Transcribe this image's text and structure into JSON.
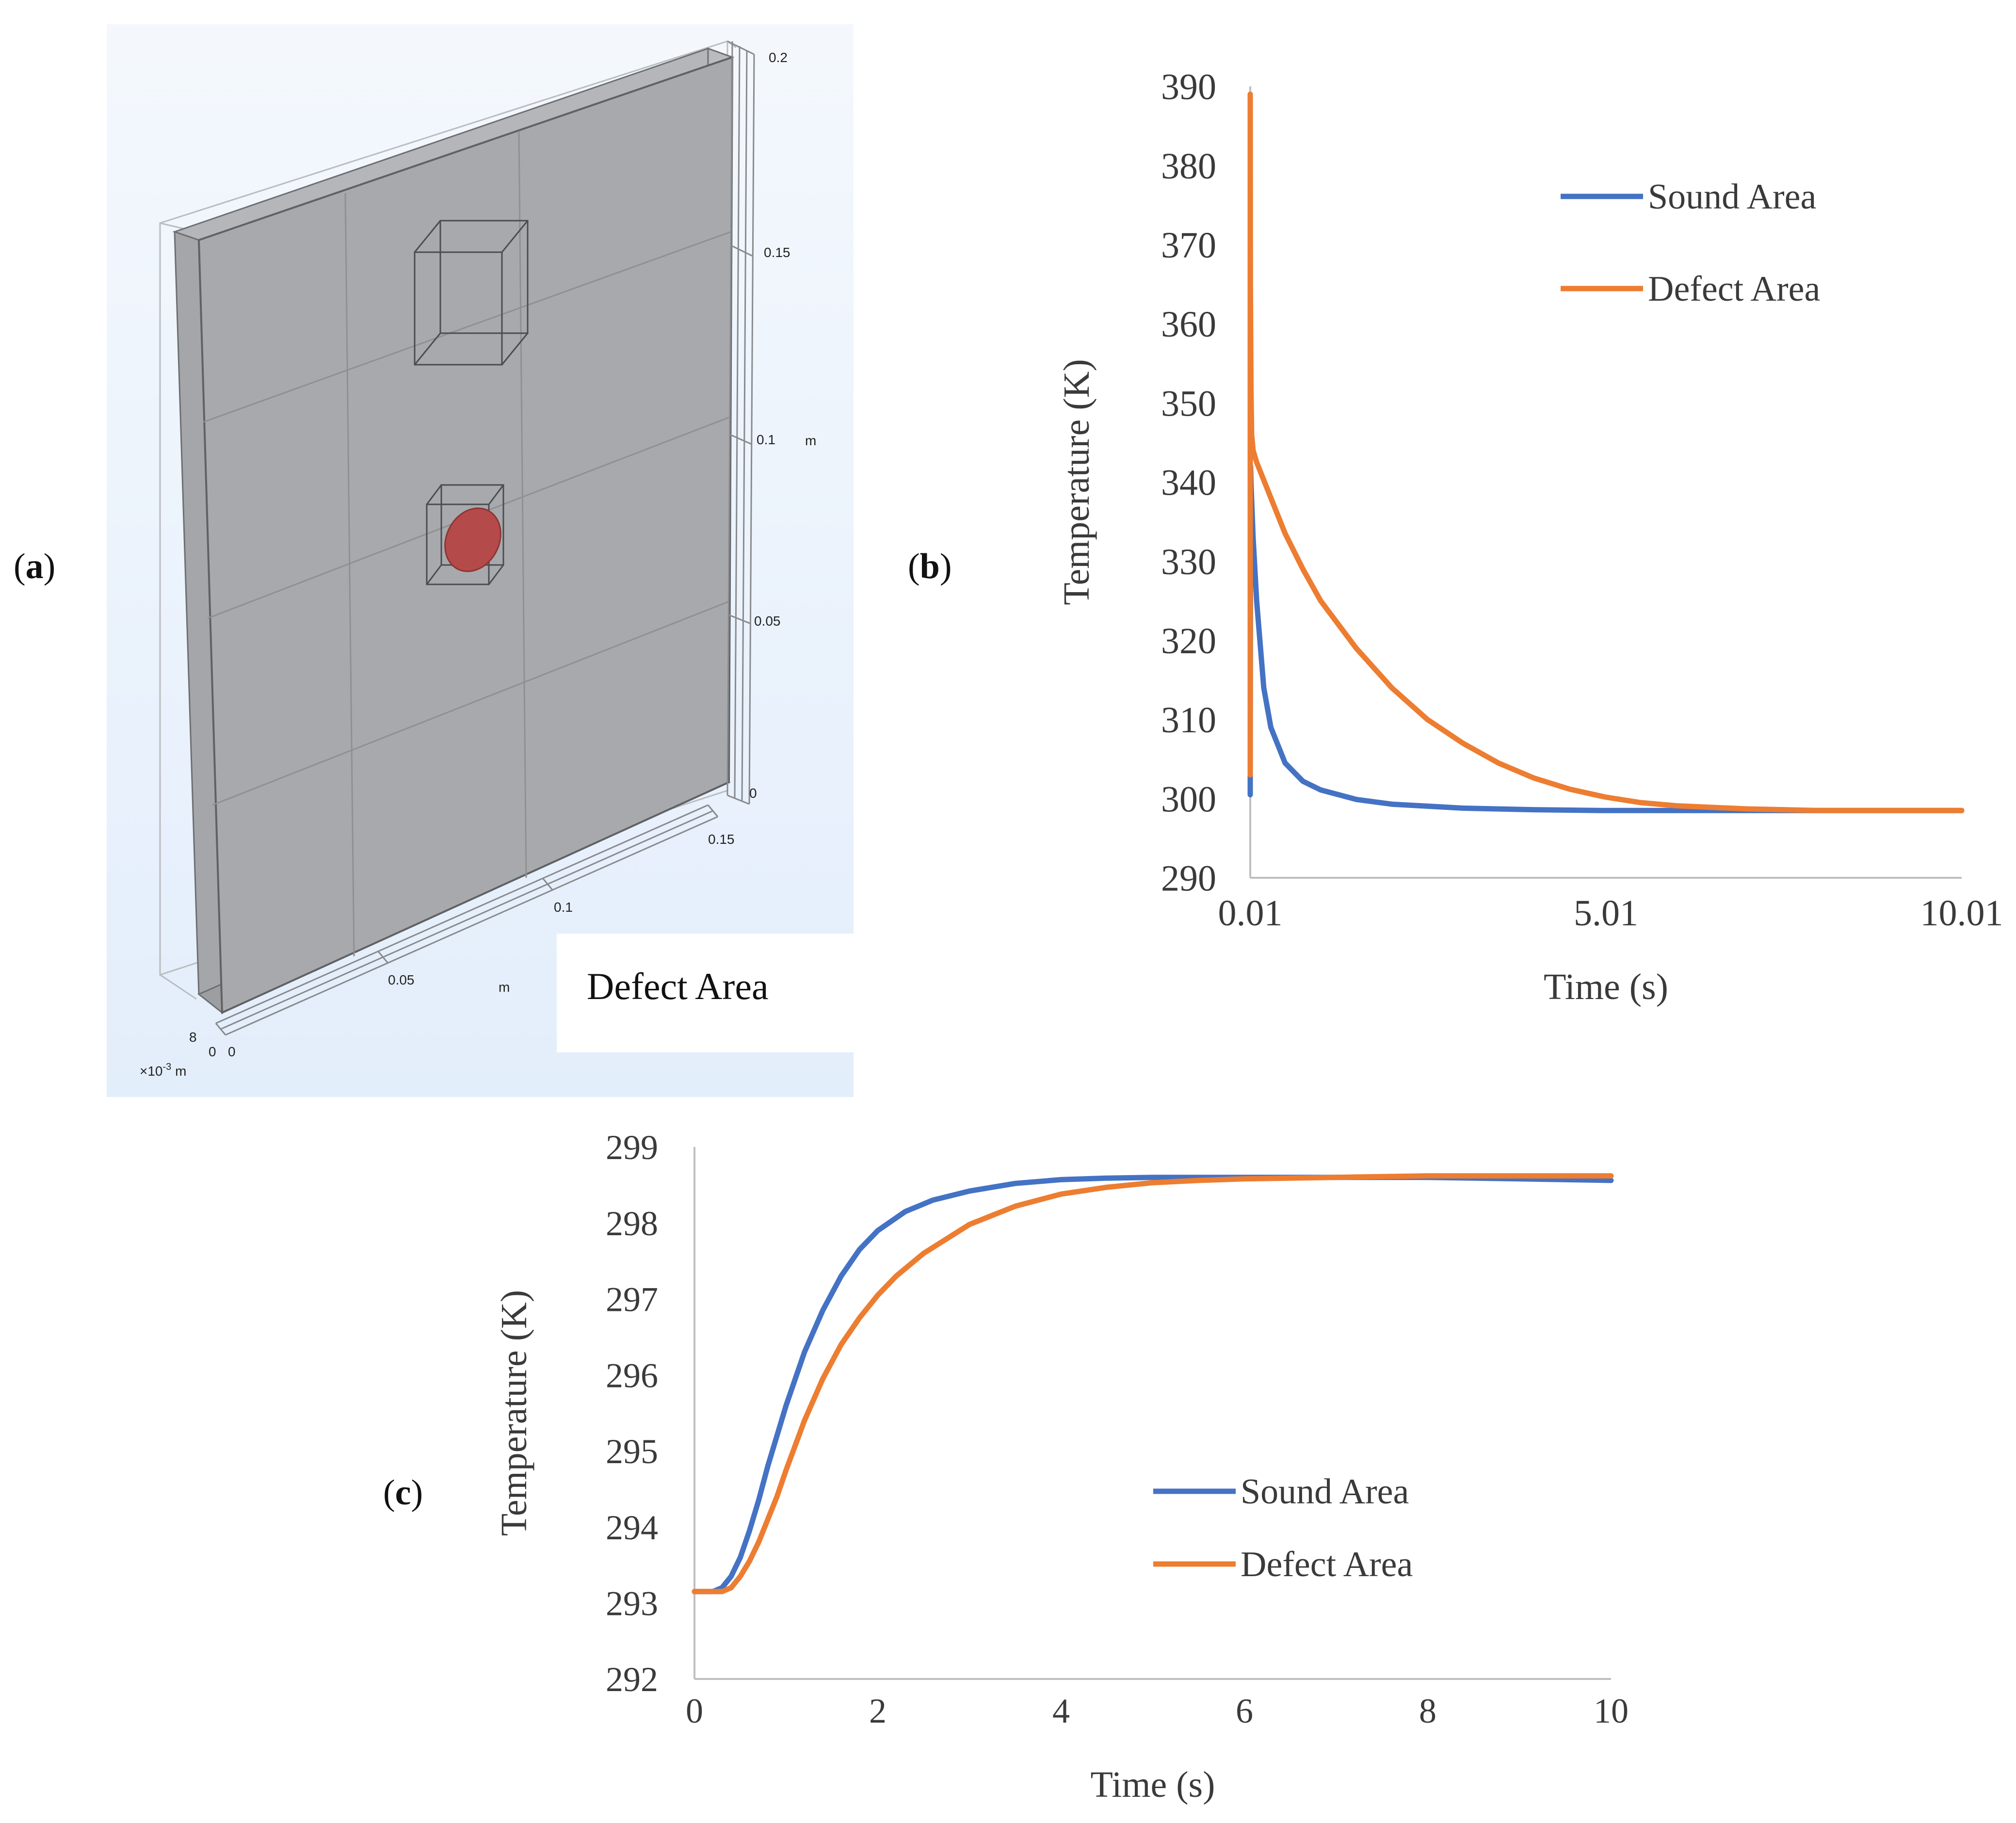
{
  "panels": {
    "a": {
      "label_open": "(",
      "label_letter": "a",
      "label_close": ")",
      "legend_label": "Defect Area",
      "vertical_axis_ticks": [
        "0.2",
        "0.15",
        "0.1",
        "0.05",
        "0"
      ],
      "vertical_axis_unit": "m",
      "depth_axis_ticks": [
        "0.15",
        "0.1",
        "0.05",
        "0"
      ],
      "depth_axis_unit": "m",
      "thickness_ticks": [
        "8",
        "0"
      ],
      "thickness_unit_base": "×10",
      "thickness_unit_exp": "-3",
      "thickness_unit_suffix": " m",
      "plate_color": "#a7a9ac",
      "defect_color": "#b44a4a",
      "background_top": "#f4f8fd",
      "background_bottom": "#e3eefb"
    },
    "b": {
      "label_open": "(",
      "label_letter": "b",
      "label_close": ")"
    },
    "c": {
      "label_open": "(",
      "label_letter": "c",
      "label_close": ")"
    }
  },
  "chart_data": [
    {
      "id": "b",
      "type": "line",
      "xlabel": "Time (s)",
      "ylabel": "Temperature (K)",
      "xlim": [
        0.01,
        10.01
      ],
      "ylim": [
        290,
        390
      ],
      "x_ticks": [
        "0.01",
        "5.01",
        "10.01"
      ],
      "y_ticks": [
        "390",
        "380",
        "370",
        "360",
        "350",
        "340",
        "330",
        "320",
        "310",
        "300",
        "290"
      ],
      "legend_position": "top-right",
      "series": [
        {
          "name": "Sound Area",
          "color": "#4472c4",
          "x": [
            0.01,
            0.01,
            0.015,
            0.02,
            0.05,
            0.1,
            0.2,
            0.3,
            0.5,
            0.75,
            1.0,
            1.5,
            2.0,
            3.0,
            4.0,
            5.0,
            6.0,
            7.0,
            8.0,
            9.0,
            10.01
          ],
          "y": [
            300.5,
            302,
            342,
            340,
            333,
            325,
            314,
            309,
            304.5,
            302.2,
            301.1,
            299.9,
            299.3,
            298.8,
            298.6,
            298.5,
            298.5,
            298.5,
            298.5,
            298.5,
            298.5
          ]
        },
        {
          "name": "Defect Area",
          "color": "#ed7d31",
          "x": [
            0.01,
            0.01,
            0.012,
            0.02,
            0.03,
            0.05,
            0.1,
            0.3,
            0.5,
            0.75,
            1.0,
            1.5,
            2.0,
            2.5,
            3.0,
            3.5,
            4.0,
            4.5,
            5.0,
            5.5,
            6.0,
            7.0,
            8.0,
            9.0,
            10.01
          ],
          "y": [
            303,
            389,
            365,
            352,
            346,
            344,
            342.5,
            338,
            333.5,
            329,
            325,
            319,
            314,
            310,
            307,
            304.5,
            302.6,
            301.2,
            300.2,
            299.5,
            299.1,
            298.7,
            298.5,
            298.5,
            298.5
          ]
        }
      ]
    },
    {
      "id": "c",
      "type": "line",
      "xlabel": "Time (s)",
      "ylabel": "Temperature (K)",
      "xlim": [
        0,
        10
      ],
      "ylim": [
        292,
        299
      ],
      "x_ticks": [
        "0",
        "2",
        "4",
        "6",
        "8",
        "10"
      ],
      "y_ticks": [
        "299",
        "298",
        "297",
        "296",
        "295",
        "294",
        "293",
        "292"
      ],
      "legend_position": "bottom-right",
      "series": [
        {
          "name": "Sound Area",
          "color": "#4472c4",
          "x": [
            0,
            0.2,
            0.3,
            0.4,
            0.5,
            0.6,
            0.7,
            0.8,
            0.9,
            1.0,
            1.2,
            1.4,
            1.6,
            1.8,
            2.0,
            2.3,
            2.6,
            3.0,
            3.5,
            4.0,
            4.5,
            5.0,
            6.0,
            7.0,
            8.0,
            9.0,
            10.0
          ],
          "y": [
            293.15,
            293.15,
            293.2,
            293.35,
            293.6,
            293.95,
            294.35,
            294.8,
            295.2,
            295.6,
            296.3,
            296.85,
            297.3,
            297.65,
            297.9,
            298.15,
            298.3,
            298.42,
            298.52,
            298.57,
            298.59,
            298.6,
            298.6,
            298.6,
            298.6,
            298.58,
            298.56
          ]
        },
        {
          "name": "Defect Area",
          "color": "#ed7d31",
          "x": [
            0,
            0.3,
            0.4,
            0.5,
            0.6,
            0.7,
            0.8,
            0.9,
            1.0,
            1.2,
            1.4,
            1.6,
            1.8,
            2.0,
            2.2,
            2.5,
            3.0,
            3.5,
            4.0,
            4.5,
            5.0,
            5.5,
            6.0,
            7.0,
            8.0,
            9.0,
            10.0
          ],
          "y": [
            293.15,
            293.15,
            293.2,
            293.35,
            293.55,
            293.8,
            294.1,
            294.4,
            294.75,
            295.4,
            295.95,
            296.4,
            296.75,
            297.05,
            297.3,
            297.6,
            297.98,
            298.22,
            298.38,
            298.47,
            298.53,
            298.56,
            298.58,
            298.6,
            298.62,
            298.62,
            298.62
          ]
        }
      ]
    }
  ]
}
